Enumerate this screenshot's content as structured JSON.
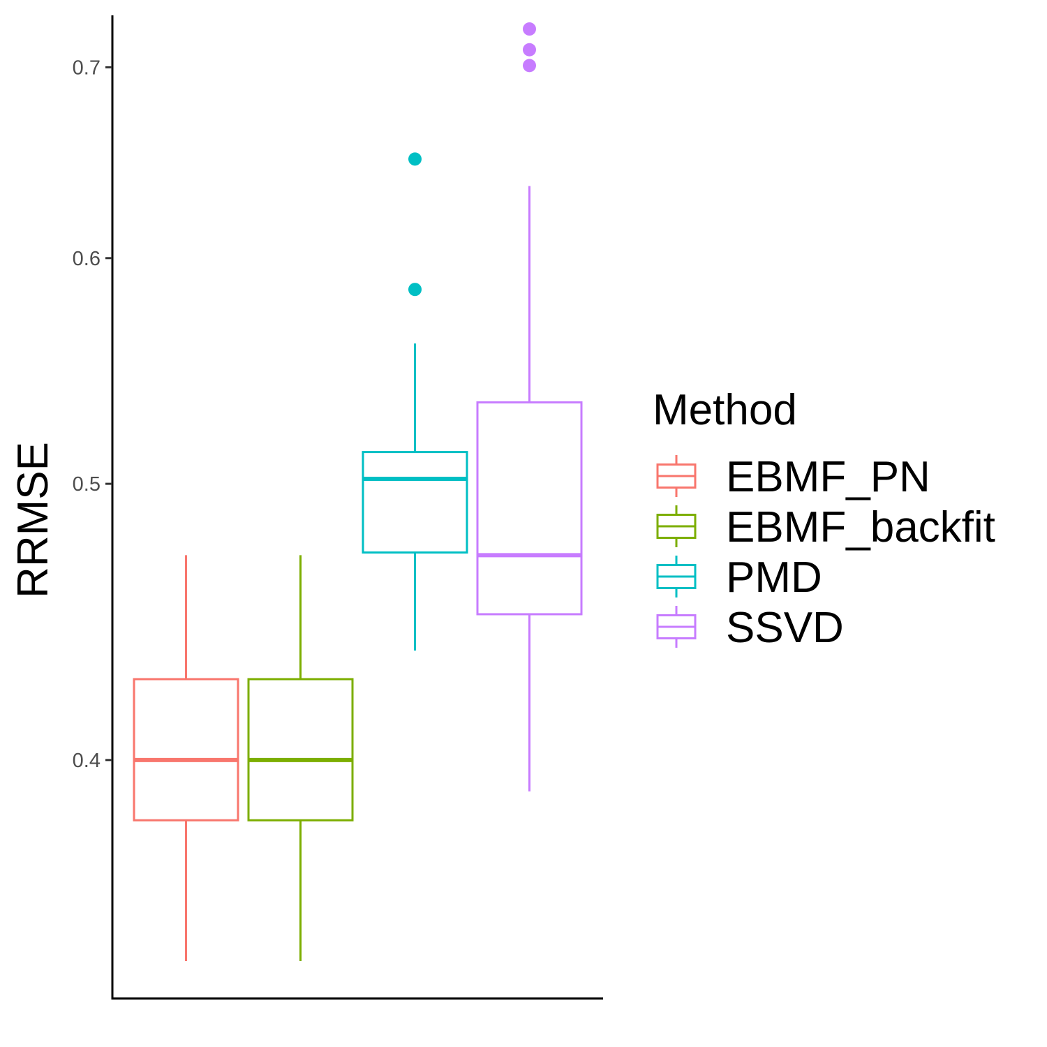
{
  "chart_data": {
    "type": "boxplot",
    "title": "",
    "xlabel": "",
    "ylabel": "RRMSE",
    "ylim": [
      0.33,
      0.73
    ],
    "y_scale": "log",
    "y_ticks": [
      0.4,
      0.5,
      0.6,
      0.7
    ],
    "y_tick_labels": [
      "0.4",
      "0.5",
      "0.6",
      "0.7"
    ],
    "grid": false,
    "legend": {
      "title": "Method",
      "placement": "right"
    },
    "series": [
      {
        "name": "EBMF_PN",
        "color": "#F8766D",
        "whisker_low": 0.34,
        "q1": 0.381,
        "median": 0.4,
        "q3": 0.427,
        "whisker_high": 0.472,
        "outliers": []
      },
      {
        "name": "EBMF_backfit",
        "color": "#7CAE00",
        "whisker_low": 0.34,
        "q1": 0.381,
        "median": 0.4,
        "q3": 0.427,
        "whisker_high": 0.472,
        "outliers": []
      },
      {
        "name": "PMD",
        "color": "#00BFC4",
        "whisker_low": 0.437,
        "q1": 0.473,
        "median": 0.502,
        "q3": 0.513,
        "whisker_high": 0.56,
        "outliers": [
          0.585,
          0.65
        ]
      },
      {
        "name": "SSVD",
        "color": "#C77CFF",
        "whisker_low": 0.39,
        "q1": 0.45,
        "median": 0.472,
        "q3": 0.534,
        "whisker_high": 0.636,
        "outliers": [
          0.701,
          0.71,
          0.722
        ]
      }
    ]
  }
}
